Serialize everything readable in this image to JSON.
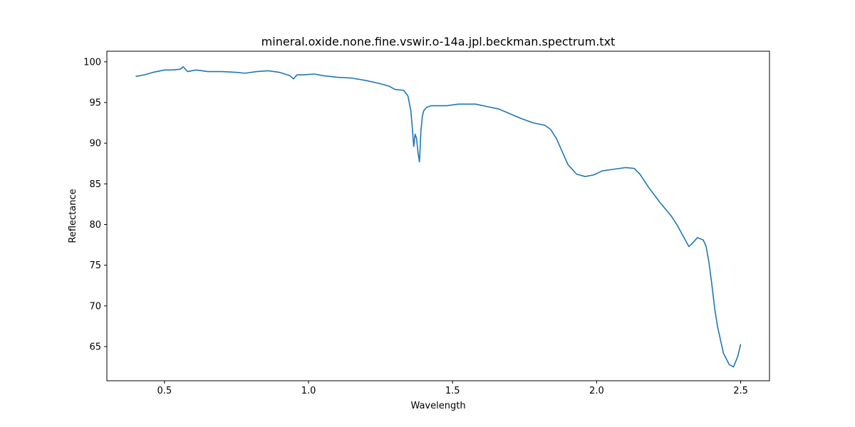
{
  "chart_data": {
    "type": "line",
    "title": "mineral.oxide.none.fine.vswir.o-14a.jpl.beckman.spectrum.txt",
    "xlabel": "Wavelength",
    "ylabel": "Reflectance",
    "xlim": [
      0.3,
      2.6
    ],
    "ylim": [
      60.8,
      101.3
    ],
    "xticks": [
      0.5,
      1.0,
      1.5,
      2.0,
      2.5
    ],
    "xtick_labels": [
      "0.5",
      "1.0",
      "1.5",
      "2.0",
      "2.5"
    ],
    "yticks": [
      65,
      70,
      75,
      80,
      85,
      90,
      95,
      100
    ],
    "ytick_labels": [
      "65",
      "70",
      "75",
      "80",
      "85",
      "90",
      "95",
      "100"
    ],
    "grid": false,
    "line_color": "#1f77b4",
    "series": [
      {
        "x": [
          0.4,
          0.43,
          0.46,
          0.5,
          0.53,
          0.555,
          0.565,
          0.58,
          0.61,
          0.65,
          0.7,
          0.75,
          0.78,
          0.82,
          0.86,
          0.9,
          0.935,
          0.948,
          0.96,
          0.98,
          1.02,
          1.05,
          1.1,
          1.15,
          1.2,
          1.25,
          1.28,
          1.3,
          1.33,
          1.345,
          1.355,
          1.36,
          1.365,
          1.37,
          1.375,
          1.38,
          1.385,
          1.39,
          1.395,
          1.4,
          1.41,
          1.425,
          1.45,
          1.48,
          1.52,
          1.55,
          1.58,
          1.62,
          1.66,
          1.7,
          1.74,
          1.78,
          1.82,
          1.84,
          1.86,
          1.88,
          1.9,
          1.93,
          1.96,
          1.99,
          2.02,
          2.06,
          2.1,
          2.13,
          2.15,
          2.18,
          2.22,
          2.26,
          2.28,
          2.3,
          2.32,
          2.33,
          2.35,
          2.37,
          2.38,
          2.39,
          2.4,
          2.41,
          2.42,
          2.44,
          2.46,
          2.475,
          2.49,
          2.5
        ],
        "y": [
          98.2,
          98.4,
          98.7,
          99.0,
          99.0,
          99.1,
          99.4,
          98.8,
          99.0,
          98.8,
          98.8,
          98.7,
          98.6,
          98.8,
          98.9,
          98.7,
          98.3,
          97.9,
          98.4,
          98.4,
          98.5,
          98.3,
          98.1,
          98.0,
          97.7,
          97.3,
          97.0,
          96.6,
          96.5,
          95.8,
          94.0,
          92.0,
          89.6,
          91.1,
          90.6,
          88.8,
          87.7,
          91.5,
          93.3,
          94.0,
          94.4,
          94.6,
          94.6,
          94.6,
          94.8,
          94.8,
          94.8,
          94.5,
          94.2,
          93.6,
          93.0,
          92.5,
          92.2,
          91.7,
          90.6,
          89.0,
          87.4,
          86.2,
          85.9,
          86.1,
          86.6,
          86.8,
          87.0,
          86.9,
          86.2,
          84.6,
          82.7,
          81.0,
          79.9,
          78.6,
          77.3,
          77.6,
          78.4,
          78.1,
          77.3,
          75.3,
          72.6,
          69.6,
          67.4,
          64.2,
          62.8,
          62.5,
          63.8,
          65.3
        ]
      }
    ]
  }
}
